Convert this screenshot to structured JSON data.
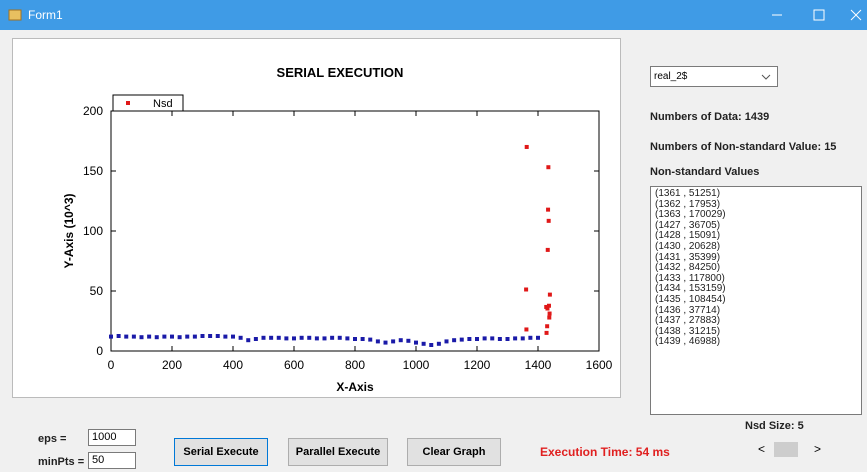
{
  "window": {
    "title": "Form1"
  },
  "chart_data": {
    "type": "scatter",
    "title": "SERIAL EXECUTION",
    "xlabel": "X-Axis",
    "ylabel": "Y-Axis (10^3)",
    "xlim": [
      0,
      1600
    ],
    "ylim": [
      0,
      200
    ],
    "xticks": [
      0,
      200,
      400,
      600,
      800,
      1000,
      1200,
      1400,
      1600
    ],
    "yticks": [
      0,
      50,
      100,
      150,
      200
    ],
    "legend": "top-left",
    "series": [
      {
        "color": "#1a1aa8",
        "x": [
          0,
          25,
          50,
          75,
          100,
          125,
          150,
          175,
          200,
          225,
          250,
          275,
          300,
          325,
          350,
          375,
          400,
          425,
          450,
          475,
          500,
          525,
          550,
          575,
          600,
          625,
          650,
          675,
          700,
          725,
          750,
          775,
          800,
          825,
          850,
          875,
          900,
          925,
          950,
          975,
          1000,
          1025,
          1050,
          1075,
          1100,
          1125,
          1150,
          1175,
          1200,
          1225,
          1250,
          1275,
          1300,
          1325,
          1350,
          1375,
          1400
        ],
        "values": [
          12,
          12.5,
          12,
          12,
          11.5,
          12,
          11.5,
          12,
          12,
          11.5,
          12,
          12,
          12.5,
          12.5,
          12.5,
          12,
          12,
          11,
          9,
          10,
          11,
          11,
          11,
          10.5,
          10.5,
          11,
          11,
          10.5,
          10.5,
          11,
          11,
          10.5,
          10,
          10,
          9.5,
          8,
          7,
          8,
          9,
          8.5,
          7,
          6,
          5,
          6,
          8,
          9,
          9.5,
          10,
          10,
          10.5,
          10.5,
          10,
          10,
          10.5,
          10.5,
          11,
          11
        ]
      },
      {
        "name": "Nsd",
        "color": "#e01818",
        "x": [
          1361,
          1362,
          1363,
          1427,
          1428,
          1430,
          1431,
          1432,
          1433,
          1434,
          1435,
          1436,
          1437,
          1438,
          1439
        ],
        "values": [
          51.251,
          17.953,
          170.029,
          36.705,
          15.091,
          20.628,
          35.399,
          84.25,
          117.8,
          153.159,
          108.454,
          37.714,
          27.883,
          31.215,
          46.988
        ]
      }
    ]
  },
  "panel": {
    "dropdown": "real_2$",
    "data_count": "Numbers of Data: 1439",
    "nonstandard_count": "Numbers of Non-standard Value: 15",
    "list_title": "Non-standard Values",
    "list_items": [
      "(1361 , 51251)",
      "(1362 , 17953)",
      "(1363 , 170029)",
      "(1427 , 36705)",
      "(1428 , 15091)",
      "(1430 , 20628)",
      "(1431 , 35399)",
      "(1432 , 84250)",
      "(1433 , 117800)",
      "(1434 , 153159)",
      "(1435 , 108454)",
      "(1436 , 37714)",
      "(1437 , 27883)",
      "(1438 , 31215)",
      "(1439 , 46988)"
    ],
    "nsd_size": "Nsd Size: 5"
  },
  "controls": {
    "eps_label": "eps =",
    "eps_value": "1000",
    "minpts_label": "minPts =",
    "minpts_value": "50",
    "serial_button": "Serial Execute",
    "parallel_button": "Parallel Execute",
    "clear_button": "Clear Graph",
    "execution_time": "Execution Time: 54 ms",
    "scroll_left": "<",
    "scroll_right": ">"
  }
}
